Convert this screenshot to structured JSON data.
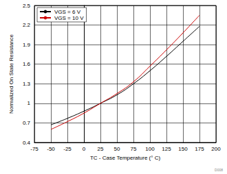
{
  "chart_data": {
    "type": "line",
    "x_label": "TC - Case Temperature (° C)",
    "y_label": "Normalized On State Resistance",
    "annotation": "D008",
    "x": [
      -50,
      -25,
      0,
      25,
      50,
      75,
      100,
      125,
      150,
      175
    ],
    "series": [
      {
        "name": "VGS = 6 V",
        "color": "#000000",
        "values": [
          0.67,
          0.77,
          0.88,
          1.0,
          1.13,
          1.3,
          1.5,
          1.72,
          1.95,
          2.18
        ]
      },
      {
        "name": "VGS = 10 V",
        "color": "#cc0000",
        "values": [
          0.6,
          0.72,
          0.85,
          1.0,
          1.15,
          1.33,
          1.57,
          1.82,
          2.08,
          2.35
        ]
      }
    ],
    "xlim": [
      -75,
      200
    ],
    "xticks": [
      -75,
      -50,
      -25,
      0,
      25,
      50,
      75,
      100,
      125,
      150,
      175,
      200
    ],
    "ylim": [
      0.4,
      2.5
    ],
    "yticks": [
      0.4,
      0.7,
      1,
      1.3,
      1.6,
      1.9,
      2.2,
      2.5
    ],
    "grid": true,
    "legend": "upper left"
  }
}
